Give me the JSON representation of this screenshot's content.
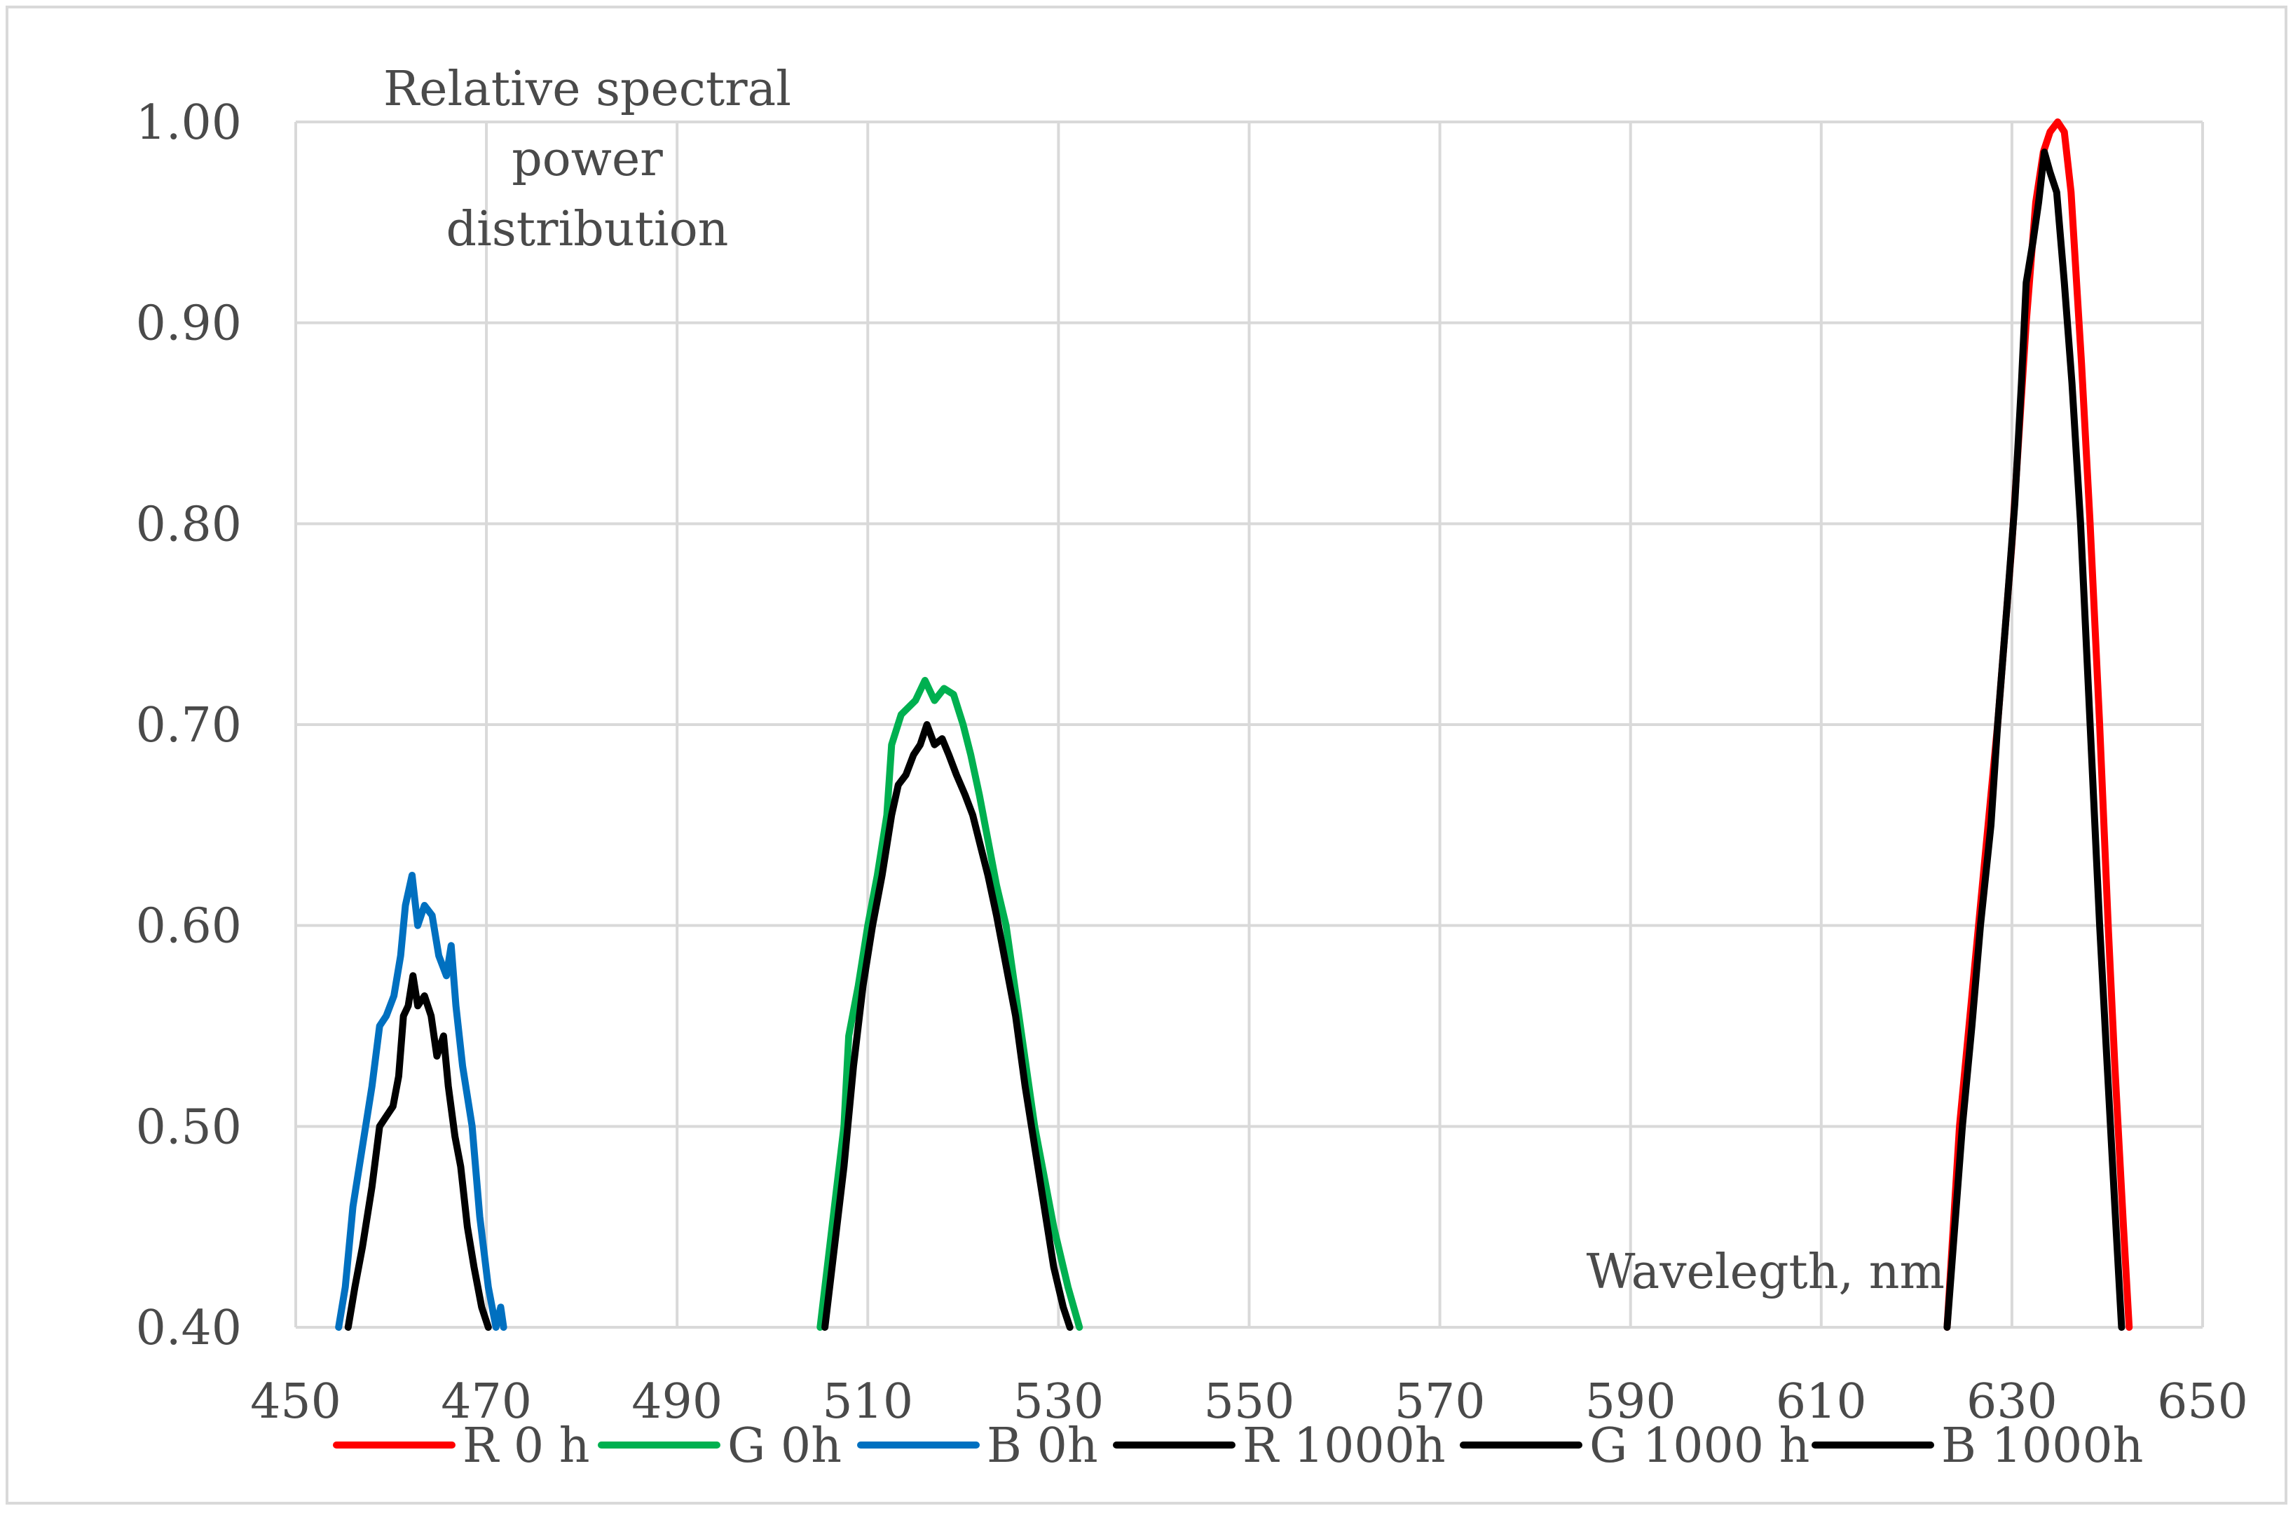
{
  "chart_data": {
    "type": "line",
    "title": "Relative spectral power distribution",
    "title_lines": [
      "Relative spectral",
      "power",
      "distribution"
    ],
    "xlabel": "Wavelegth, nm",
    "ylabel": "",
    "xlim": [
      450,
      650
    ],
    "ylim": [
      0.4,
      1.0
    ],
    "x_ticks": [
      450,
      470,
      490,
      510,
      530,
      550,
      570,
      590,
      610,
      630,
      650
    ],
    "x_tick_labels": [
      "450",
      "470",
      "490",
      "510",
      "530",
      "550",
      "570",
      "590",
      "610",
      "630",
      "650"
    ],
    "y_ticks": [
      0.4,
      0.5,
      0.6,
      0.7,
      0.8,
      0.9,
      1.0
    ],
    "y_tick_labels": [
      "0.40",
      "0.50",
      "0.60",
      "0.70",
      "0.80",
      "0.90",
      "1.00"
    ],
    "grid": true,
    "legend_position": "bottom",
    "series": [
      {
        "name": "R 0 h",
        "color": "#ff0000",
        "points": [
          [
            623.2,
            0.4
          ],
          [
            624.5,
            0.5
          ],
          [
            626.5,
            0.6
          ],
          [
            628.5,
            0.7
          ],
          [
            630,
            0.79
          ],
          [
            631.5,
            0.9
          ],
          [
            632.5,
            0.96
          ],
          [
            633.3,
            0.985
          ],
          [
            634,
            0.995
          ],
          [
            634.8,
            1.0
          ],
          [
            635.5,
            0.995
          ],
          [
            636.2,
            0.965
          ],
          [
            637.3,
            0.88
          ],
          [
            638.2,
            0.8
          ],
          [
            639.2,
            0.7
          ],
          [
            640.1,
            0.6
          ],
          [
            640.8,
            0.53
          ],
          [
            641.7,
            0.45
          ],
          [
            642.3,
            0.4
          ]
        ]
      },
      {
        "name": "G 0h",
        "color": "#00b050",
        "points": [
          [
            505,
            0.4
          ],
          [
            507.5,
            0.5
          ],
          [
            508,
            0.545
          ],
          [
            509,
            0.57
          ],
          [
            510,
            0.6
          ],
          [
            511,
            0.625
          ],
          [
            512,
            0.655
          ],
          [
            512.5,
            0.69
          ],
          [
            513.5,
            0.705
          ],
          [
            515,
            0.712
          ],
          [
            516,
            0.722
          ],
          [
            517,
            0.712
          ],
          [
            518,
            0.718
          ],
          [
            519,
            0.715
          ],
          [
            520,
            0.7
          ],
          [
            520.8,
            0.685
          ],
          [
            521.7,
            0.665
          ],
          [
            522.5,
            0.645
          ],
          [
            523.5,
            0.62
          ],
          [
            524.5,
            0.6
          ],
          [
            526,
            0.55
          ],
          [
            527.5,
            0.5
          ],
          [
            529.5,
            0.45
          ],
          [
            531,
            0.42
          ],
          [
            532.2,
            0.4
          ]
        ]
      },
      {
        "name": "B 0h",
        "color": "#0070c0",
        "points": [
          [
            454.5,
            0.4
          ],
          [
            455.2,
            0.42
          ],
          [
            456,
            0.46
          ],
          [
            457,
            0.49
          ],
          [
            458,
            0.52
          ],
          [
            458.8,
            0.55
          ],
          [
            459.5,
            0.555
          ],
          [
            460.3,
            0.565
          ],
          [
            461,
            0.585
          ],
          [
            461.5,
            0.61
          ],
          [
            462.2,
            0.625
          ],
          [
            462.8,
            0.6
          ],
          [
            463.5,
            0.61
          ],
          [
            464.3,
            0.605
          ],
          [
            465,
            0.585
          ],
          [
            465.8,
            0.575
          ],
          [
            466.3,
            0.59
          ],
          [
            466.8,
            0.56
          ],
          [
            467.5,
            0.53
          ],
          [
            468.5,
            0.5
          ],
          [
            469.3,
            0.455
          ],
          [
            470.2,
            0.42
          ],
          [
            471,
            0.4
          ],
          [
            471.5,
            0.41
          ],
          [
            471.8,
            0.4
          ]
        ]
      },
      {
        "name": "R 1000h",
        "color": "#000000",
        "points": [
          [
            623.2,
            0.4
          ],
          [
            624,
            0.45
          ],
          [
            624.8,
            0.5
          ],
          [
            625.8,
            0.55
          ],
          [
            626.7,
            0.6
          ],
          [
            627.8,
            0.65
          ],
          [
            628.5,
            0.7
          ],
          [
            629.5,
            0.76
          ],
          [
            630.3,
            0.81
          ],
          [
            631,
            0.87
          ],
          [
            631.5,
            0.92
          ],
          [
            632.2,
            0.94
          ],
          [
            632.8,
            0.96
          ],
          [
            633.4,
            0.985
          ],
          [
            634,
            0.975
          ],
          [
            634.7,
            0.965
          ],
          [
            635.5,
            0.92
          ],
          [
            636.3,
            0.87
          ],
          [
            637.2,
            0.8
          ],
          [
            638.2,
            0.7
          ],
          [
            639.2,
            0.6
          ],
          [
            640,
            0.53
          ],
          [
            640.8,
            0.46
          ],
          [
            641.5,
            0.4
          ]
        ]
      },
      {
        "name": "G 1000 h",
        "color": "#000000",
        "points": [
          [
            505.5,
            0.4
          ],
          [
            506.5,
            0.44
          ],
          [
            507.5,
            0.48
          ],
          [
            508.5,
            0.53
          ],
          [
            509.5,
            0.57
          ],
          [
            510.5,
            0.6
          ],
          [
            511.5,
            0.625
          ],
          [
            512.5,
            0.655
          ],
          [
            513.2,
            0.67
          ],
          [
            514,
            0.675
          ],
          [
            514.8,
            0.685
          ],
          [
            515.5,
            0.69
          ],
          [
            516.2,
            0.7
          ],
          [
            517,
            0.69
          ],
          [
            517.8,
            0.693
          ],
          [
            518.5,
            0.685
          ],
          [
            519.3,
            0.675
          ],
          [
            520.2,
            0.665
          ],
          [
            521,
            0.655
          ],
          [
            521.8,
            0.64
          ],
          [
            522.6,
            0.625
          ],
          [
            523.5,
            0.605
          ],
          [
            524.5,
            0.58
          ],
          [
            525.5,
            0.555
          ],
          [
            526.5,
            0.52
          ],
          [
            527.5,
            0.49
          ],
          [
            528.5,
            0.46
          ],
          [
            529.5,
            0.43
          ],
          [
            530.5,
            0.41
          ],
          [
            531.2,
            0.4
          ]
        ]
      },
      {
        "name": "B 1000h",
        "color": "#000000",
        "points": [
          [
            455.5,
            0.4
          ],
          [
            456.2,
            0.42
          ],
          [
            457,
            0.44
          ],
          [
            458,
            0.47
          ],
          [
            458.8,
            0.5
          ],
          [
            459.5,
            0.505
          ],
          [
            460.2,
            0.51
          ],
          [
            460.8,
            0.525
          ],
          [
            461.3,
            0.555
          ],
          [
            461.8,
            0.56
          ],
          [
            462.3,
            0.575
          ],
          [
            462.8,
            0.56
          ],
          [
            463.5,
            0.565
          ],
          [
            464.2,
            0.555
          ],
          [
            464.8,
            0.535
          ],
          [
            465.5,
            0.545
          ],
          [
            466,
            0.52
          ],
          [
            466.7,
            0.495
          ],
          [
            467.3,
            0.48
          ],
          [
            468,
            0.45
          ],
          [
            468.7,
            0.43
          ],
          [
            469.5,
            0.41
          ],
          [
            470.2,
            0.4
          ]
        ]
      }
    ]
  }
}
